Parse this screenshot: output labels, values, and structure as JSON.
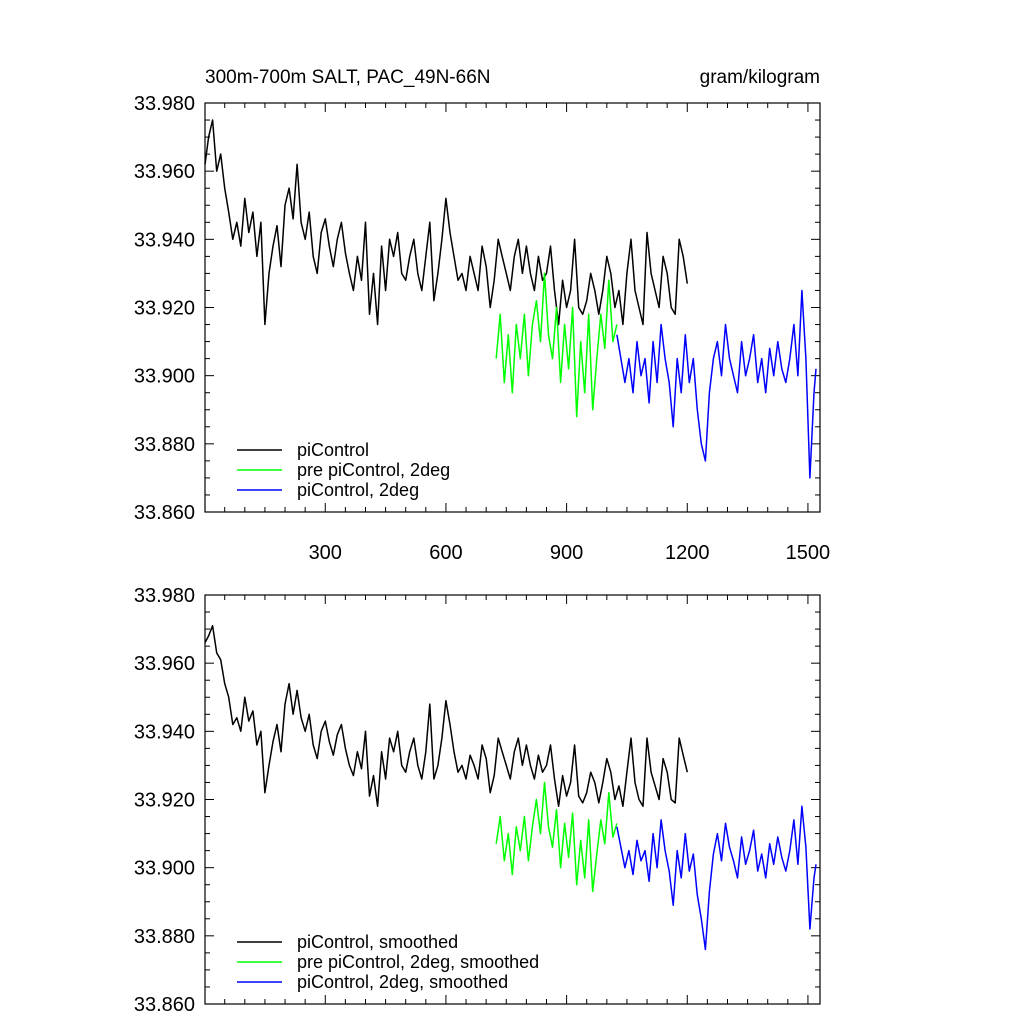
{
  "colors": {
    "black": "#000000",
    "green": "#00ff00",
    "blue": "#0000ff"
  },
  "chart_data": [
    {
      "type": "line",
      "title": "300m-700m SALT, PAC_49N-66N",
      "units": "gram/kilogram",
      "xlim": [
        1,
        1530
      ],
      "ylim": [
        33.86,
        33.98
      ],
      "x_tick_labels": [
        "300",
        "600",
        "900",
        "1200",
        "1500"
      ],
      "x_ticks": [
        300,
        600,
        900,
        1200,
        1500
      ],
      "y_tick_labels": [
        "33.860",
        "33.880",
        "33.900",
        "33.920",
        "33.940",
        "33.960",
        "33.980"
      ],
      "y_ticks": [
        33.86,
        33.88,
        33.9,
        33.92,
        33.94,
        33.96,
        33.98
      ],
      "legend": {
        "placement": "bottom-left"
      },
      "series": [
        {
          "name": "piControl",
          "color": "#000000",
          "x": [
            1,
            10,
            20,
            30,
            40,
            50,
            60,
            70,
            80,
            90,
            100,
            110,
            120,
            130,
            140,
            150,
            160,
            170,
            180,
            190,
            200,
            210,
            220,
            230,
            240,
            250,
            260,
            270,
            280,
            290,
            300,
            310,
            320,
            330,
            340,
            350,
            360,
            370,
            380,
            390,
            400,
            410,
            420,
            430,
            440,
            450,
            460,
            470,
            480,
            490,
            500,
            510,
            520,
            530,
            540,
            550,
            560,
            570,
            580,
            590,
            600,
            610,
            620,
            630,
            640,
            650,
            660,
            670,
            680,
            690,
            700,
            710,
            720,
            730,
            740,
            750,
            760,
            770,
            780,
            790,
            800,
            810,
            820,
            830,
            840,
            850,
            860,
            870,
            880,
            890,
            900,
            910,
            920,
            930,
            940,
            950,
            960,
            970,
            980,
            990,
            1000,
            1010,
            1020,
            1030,
            1040,
            1050,
            1060,
            1070,
            1080,
            1090,
            1100,
            1110,
            1120,
            1130,
            1140,
            1150,
            1160,
            1170,
            1180,
            1190,
            1200
          ],
          "y": [
            33.962,
            33.97,
            33.975,
            33.96,
            33.965,
            33.955,
            33.948,
            33.94,
            33.945,
            33.938,
            33.952,
            33.942,
            33.948,
            33.935,
            33.945,
            33.915,
            33.93,
            33.938,
            33.944,
            33.932,
            33.95,
            33.955,
            33.946,
            33.962,
            33.945,
            33.94,
            33.948,
            33.935,
            33.93,
            33.942,
            33.946,
            33.938,
            33.932,
            33.94,
            33.945,
            33.936,
            33.93,
            33.925,
            33.935,
            33.928,
            33.945,
            33.918,
            33.93,
            33.915,
            33.938,
            33.925,
            33.94,
            33.935,
            33.942,
            33.93,
            33.928,
            33.935,
            33.94,
            33.93,
            33.925,
            33.935,
            33.945,
            33.922,
            33.93,
            33.94,
            33.952,
            33.942,
            33.935,
            33.928,
            33.93,
            33.925,
            33.935,
            33.93,
            33.925,
            33.938,
            33.932,
            33.92,
            33.928,
            33.94,
            33.935,
            33.93,
            33.925,
            33.935,
            33.94,
            33.93,
            33.938,
            33.93,
            33.925,
            33.935,
            33.928,
            33.93,
            33.938,
            33.925,
            33.915,
            33.928,
            33.92,
            33.925,
            33.94,
            33.92,
            33.918,
            33.922,
            33.93,
            33.925,
            33.918,
            33.925,
            33.935,
            33.93,
            33.92,
            33.925,
            33.915,
            33.93,
            33.94,
            33.925,
            33.92,
            33.915,
            33.942,
            33.93,
            33.925,
            33.92,
            33.935,
            33.93,
            33.92,
            33.918,
            33.94,
            33.935,
            33.927
          ]
        },
        {
          "name": "pre piControl, 2deg",
          "color": "#00ff00",
          "x": [
            725,
            735,
            745,
            755,
            765,
            775,
            785,
            795,
            805,
            815,
            825,
            835,
            845,
            855,
            865,
            875,
            885,
            895,
            905,
            915,
            925,
            935,
            945,
            955,
            965,
            975,
            985,
            995,
            1005,
            1015,
            1025
          ],
          "y": [
            33.905,
            33.918,
            33.898,
            33.912,
            33.895,
            33.915,
            33.905,
            33.918,
            33.9,
            33.915,
            33.922,
            33.91,
            33.93,
            33.912,
            33.905,
            33.92,
            33.898,
            33.915,
            33.902,
            33.92,
            33.888,
            33.91,
            33.895,
            33.918,
            33.89,
            33.905,
            33.918,
            33.908,
            33.928,
            33.91,
            33.915
          ]
        },
        {
          "name": "piControl, 2deg",
          "color": "#0000ff",
          "x": [
            1025,
            1035,
            1045,
            1055,
            1065,
            1075,
            1085,
            1095,
            1105,
            1115,
            1125,
            1135,
            1145,
            1155,
            1165,
            1175,
            1185,
            1195,
            1205,
            1215,
            1225,
            1235,
            1245,
            1255,
            1265,
            1275,
            1285,
            1295,
            1305,
            1315,
            1325,
            1335,
            1345,
            1355,
            1365,
            1375,
            1385,
            1395,
            1405,
            1415,
            1425,
            1435,
            1445,
            1455,
            1465,
            1475,
            1485,
            1495,
            1505,
            1515,
            1520
          ],
          "y": [
            33.912,
            33.905,
            33.898,
            33.905,
            33.895,
            33.91,
            33.9,
            33.905,
            33.892,
            33.91,
            33.898,
            33.915,
            33.905,
            33.898,
            33.885,
            33.905,
            33.895,
            33.912,
            33.898,
            33.905,
            33.89,
            33.88,
            33.875,
            33.895,
            33.905,
            33.91,
            33.9,
            33.915,
            33.905,
            33.9,
            33.895,
            33.91,
            33.9,
            33.905,
            33.912,
            33.898,
            33.905,
            33.895,
            33.908,
            33.9,
            33.91,
            33.902,
            33.898,
            33.905,
            33.915,
            33.9,
            33.925,
            33.905,
            33.87,
            33.895,
            33.902
          ]
        }
      ]
    },
    {
      "type": "line",
      "xlim": [
        1,
        1530
      ],
      "ylim": [
        33.86,
        33.98
      ],
      "x_ticks": [
        300,
        600,
        900,
        1200,
        1500
      ],
      "y_tick_labels": [
        "33.860",
        "33.880",
        "33.900",
        "33.920",
        "33.940",
        "33.960",
        "33.980"
      ],
      "y_ticks": [
        33.86,
        33.88,
        33.9,
        33.92,
        33.94,
        33.96,
        33.98
      ],
      "legend": {
        "placement": "bottom-left"
      },
      "series": [
        {
          "name": "piControl, smoothed",
          "color": "#000000",
          "x": [
            1,
            10,
            20,
            30,
            40,
            50,
            60,
            70,
            80,
            90,
            100,
            110,
            120,
            130,
            140,
            150,
            160,
            170,
            180,
            190,
            200,
            210,
            220,
            230,
            240,
            250,
            260,
            270,
            280,
            290,
            300,
            310,
            320,
            330,
            340,
            350,
            360,
            370,
            380,
            390,
            400,
            410,
            420,
            430,
            440,
            450,
            460,
            470,
            480,
            490,
            500,
            510,
            520,
            530,
            540,
            550,
            560,
            570,
            580,
            590,
            600,
            610,
            620,
            630,
            640,
            650,
            660,
            670,
            680,
            690,
            700,
            710,
            720,
            730,
            740,
            750,
            760,
            770,
            780,
            790,
            800,
            810,
            820,
            830,
            840,
            850,
            860,
            870,
            880,
            890,
            900,
            910,
            920,
            930,
            940,
            950,
            960,
            970,
            980,
            990,
            1000,
            1010,
            1020,
            1030,
            1040,
            1050,
            1060,
            1070,
            1080,
            1090,
            1100,
            1110,
            1120,
            1130,
            1140,
            1150,
            1160,
            1170,
            1180,
            1190,
            1200
          ],
          "y": [
            33.966,
            33.968,
            33.971,
            33.963,
            33.961,
            33.954,
            33.95,
            33.942,
            33.944,
            33.94,
            33.95,
            33.943,
            33.946,
            33.936,
            33.94,
            33.922,
            33.93,
            33.937,
            33.942,
            33.934,
            33.948,
            33.954,
            33.945,
            33.952,
            33.944,
            33.94,
            33.945,
            33.936,
            33.932,
            33.94,
            33.943,
            33.937,
            33.933,
            33.939,
            33.942,
            33.935,
            33.93,
            33.927,
            33.934,
            33.929,
            33.94,
            33.921,
            33.927,
            33.918,
            33.934,
            33.926,
            33.938,
            33.934,
            33.94,
            33.93,
            33.928,
            33.934,
            33.938,
            33.93,
            33.926,
            33.934,
            33.948,
            33.926,
            33.93,
            33.938,
            33.949,
            33.942,
            33.934,
            33.928,
            33.93,
            33.926,
            33.933,
            33.93,
            33.926,
            33.936,
            33.932,
            33.922,
            33.927,
            33.938,
            33.934,
            33.93,
            33.926,
            33.934,
            33.938,
            33.93,
            33.936,
            33.93,
            33.926,
            33.933,
            33.928,
            33.93,
            33.936,
            33.926,
            33.918,
            33.927,
            33.921,
            33.925,
            33.936,
            33.921,
            33.919,
            33.922,
            33.928,
            33.925,
            33.919,
            33.925,
            33.932,
            33.928,
            33.92,
            33.924,
            33.918,
            33.928,
            33.938,
            33.925,
            33.92,
            33.918,
            33.938,
            33.928,
            33.924,
            33.92,
            33.932,
            33.928,
            33.92,
            33.919,
            33.938,
            33.933,
            33.928
          ]
        },
        {
          "name": "pre piControl, 2deg, smoothed",
          "color": "#00ff00",
          "x": [
            725,
            735,
            745,
            755,
            765,
            775,
            785,
            795,
            805,
            815,
            825,
            835,
            845,
            855,
            865,
            875,
            885,
            895,
            905,
            915,
            925,
            935,
            945,
            955,
            965,
            975,
            985,
            995,
            1005,
            1015,
            1025
          ],
          "y": [
            33.907,
            33.915,
            33.902,
            33.91,
            33.898,
            33.912,
            33.905,
            33.915,
            33.902,
            33.912,
            33.92,
            33.91,
            33.925,
            33.912,
            33.906,
            33.917,
            33.9,
            33.913,
            33.903,
            33.916,
            33.895,
            33.908,
            33.897,
            33.914,
            33.893,
            33.904,
            33.914,
            33.907,
            33.922,
            33.909,
            33.913
          ]
        },
        {
          "name": "piControl, 2deg, smoothed",
          "color": "#0000ff",
          "x": [
            1025,
            1035,
            1045,
            1055,
            1065,
            1075,
            1085,
            1095,
            1105,
            1115,
            1125,
            1135,
            1145,
            1155,
            1165,
            1175,
            1185,
            1195,
            1205,
            1215,
            1225,
            1235,
            1245,
            1255,
            1265,
            1275,
            1285,
            1295,
            1305,
            1315,
            1325,
            1335,
            1345,
            1355,
            1365,
            1375,
            1385,
            1395,
            1405,
            1415,
            1425,
            1435,
            1445,
            1455,
            1465,
            1475,
            1485,
            1495,
            1505,
            1515,
            1520
          ],
          "y": [
            33.912,
            33.906,
            33.9,
            33.905,
            33.898,
            33.908,
            33.902,
            33.905,
            33.896,
            33.91,
            33.9,
            33.914,
            33.905,
            33.899,
            33.889,
            33.905,
            33.897,
            33.91,
            33.899,
            33.904,
            33.892,
            33.885,
            33.876,
            33.893,
            33.904,
            33.91,
            33.902,
            33.913,
            33.906,
            33.902,
            33.897,
            33.909,
            33.901,
            33.905,
            33.911,
            33.899,
            33.904,
            33.897,
            33.907,
            33.901,
            33.909,
            33.903,
            33.899,
            33.905,
            33.914,
            33.901,
            33.918,
            33.906,
            33.882,
            33.897,
            33.901
          ]
        }
      ]
    }
  ]
}
